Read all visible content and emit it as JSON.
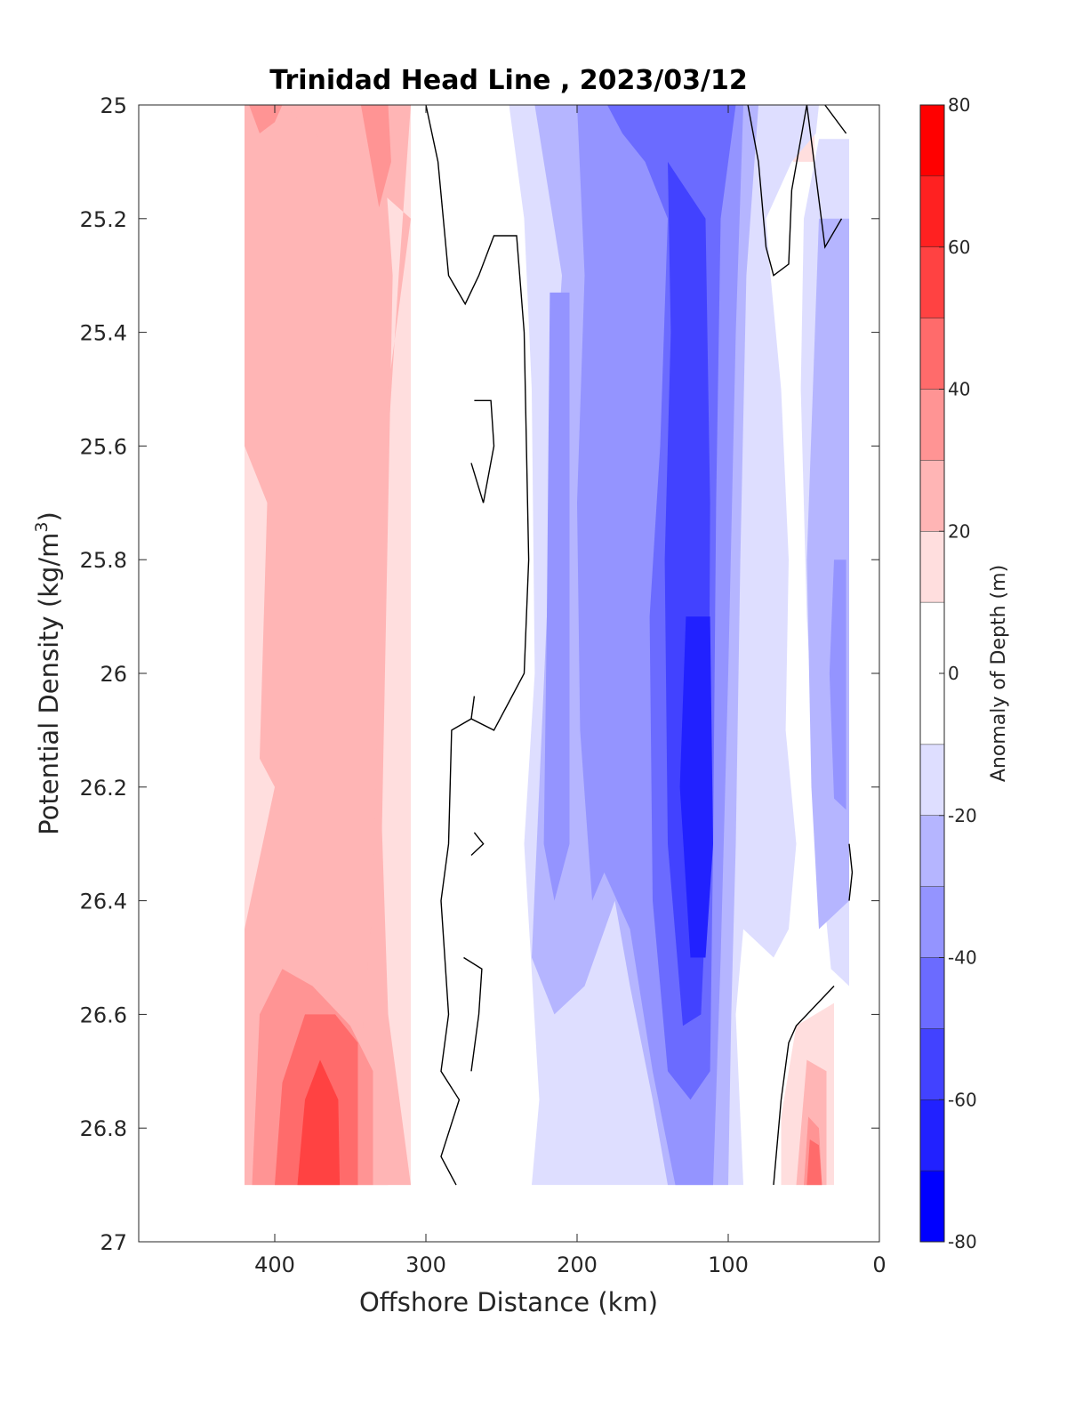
{
  "chart_data": {
    "type": "heatmap",
    "title": "Trinidad Head Line , 2023/03/12",
    "xlabel": "Offshore Distance (km)",
    "ylabel": "Potential Density (kg/m",
    "ylabel_sup": "3",
    "ylabel_close": ")",
    "colorbar_label": "Anomaly of Depth (m)",
    "xlim": [
      490,
      0
    ],
    "x_reversed": true,
    "ylim": [
      25,
      27
    ],
    "y_reversed": true,
    "xticks": [
      400,
      300,
      200,
      100,
      0
    ],
    "yticks": [
      25,
      25.2,
      25.4,
      25.6,
      25.8,
      26,
      26.2,
      26.4,
      26.6,
      26.8,
      27
    ],
    "grid": false,
    "colorbar": {
      "range": [
        -80,
        80
      ],
      "ticks": [
        80,
        60,
        40,
        20,
        0,
        -20,
        -40,
        -60,
        -80
      ],
      "levels": [
        {
          "min": 70,
          "max": 80,
          "color": "#ff0000"
        },
        {
          "min": 60,
          "max": 70,
          "color": "#ff2121"
        },
        {
          "min": 50,
          "max": 60,
          "color": "#ff4242"
        },
        {
          "min": 40,
          "max": 50,
          "color": "#ff6b6b"
        },
        {
          "min": 30,
          "max": 40,
          "color": "#ff9494"
        },
        {
          "min": 20,
          "max": 30,
          "color": "#ffb5b5"
        },
        {
          "min": 10,
          "max": 20,
          "color": "#ffdede"
        },
        {
          "min": -10,
          "max": 10,
          "color": "#ffffff"
        },
        {
          "min": -20,
          "max": -10,
          "color": "#dedeff"
        },
        {
          "min": -30,
          "max": -20,
          "color": "#b5b5ff"
        },
        {
          "min": -40,
          "max": -30,
          "color": "#9494ff"
        },
        {
          "min": -50,
          "max": -40,
          "color": "#6b6bff"
        },
        {
          "min": -60,
          "max": -50,
          "color": "#4242ff"
        },
        {
          "min": -70,
          "max": -60,
          "color": "#2121ff"
        },
        {
          "min": -80,
          "max": -70,
          "color": "#0000ff"
        }
      ]
    },
    "contour_regions": [
      {
        "level": 20,
        "color": "#ffdede",
        "points": [
          [
            420,
            25
          ],
          [
            310,
            25
          ],
          [
            310,
            26.9
          ],
          [
            420,
            26.9
          ]
        ]
      },
      {
        "level": 20,
        "color": "#ffdede",
        "points": [
          [
            57,
            25
          ],
          [
            43,
            25
          ],
          [
            43,
            25.1
          ],
          [
            57,
            25.1
          ]
        ]
      },
      {
        "level": 20,
        "color": "#ffdede",
        "points": [
          [
            65,
            26.9
          ],
          [
            30,
            26.9
          ],
          [
            30,
            26.58
          ],
          [
            55,
            26.62
          ],
          [
            65,
            26.78
          ]
        ]
      },
      {
        "level": 30,
        "color": "#ffb5b5",
        "points": [
          [
            420,
            25
          ],
          [
            330,
            25
          ],
          [
            322,
            25.3
          ],
          [
            330,
            26.4
          ],
          [
            325,
            26.9
          ],
          [
            420,
            26.9
          ],
          [
            420,
            26.45
          ],
          [
            400,
            26.2
          ],
          [
            410,
            26.15
          ],
          [
            405,
            25.7
          ],
          [
            420,
            25.6
          ]
        ]
      },
      {
        "level": 30,
        "color": "#ffb5b5",
        "points": [
          [
            395,
            25
          ],
          [
            310,
            25
          ],
          [
            318,
            25.3
          ],
          [
            330,
            25.8
          ],
          [
            335,
            26.4
          ],
          [
            350,
            26.9
          ],
          [
            310,
            26.9
          ],
          [
            325,
            26.6
          ],
          [
            330,
            26.2
          ],
          [
            325,
            25.5
          ],
          [
            310,
            25.2
          ]
        ]
      },
      {
        "level": 30,
        "color": "#ffb5b5",
        "points": [
          [
            55,
            26.9
          ],
          [
            35,
            26.9
          ],
          [
            35,
            26.7
          ],
          [
            48,
            26.68
          ]
        ]
      },
      {
        "level": 40,
        "color": "#ff9494",
        "points": [
          [
            417,
            25
          ],
          [
            395,
            25
          ],
          [
            400,
            25.03
          ],
          [
            410,
            25.05
          ]
        ]
      },
      {
        "level": 40,
        "color": "#ff9494",
        "points": [
          [
            343,
            25
          ],
          [
            325,
            25
          ],
          [
            323,
            25.1
          ],
          [
            331,
            25.18
          ]
        ]
      },
      {
        "level": 40,
        "color": "#ff9494",
        "points": [
          [
            415,
            26.9
          ],
          [
            335,
            26.9
          ],
          [
            335,
            26.7
          ],
          [
            350,
            26.62
          ],
          [
            375,
            26.55
          ],
          [
            395,
            26.52
          ],
          [
            410,
            26.6
          ]
        ]
      },
      {
        "level": 40,
        "color": "#ff9494",
        "points": [
          [
            50,
            26.9
          ],
          [
            38,
            26.9
          ],
          [
            40,
            26.8
          ],
          [
            47,
            26.78
          ]
        ]
      },
      {
        "level": 50,
        "color": "#ff6b6b",
        "points": [
          [
            400,
            26.9
          ],
          [
            345,
            26.9
          ],
          [
            345,
            26.65
          ],
          [
            360,
            26.6
          ],
          [
            380,
            26.6
          ],
          [
            395,
            26.72
          ]
        ]
      },
      {
        "level": 50,
        "color": "#ff6b6b",
        "points": [
          [
            48,
            26.9
          ],
          [
            38,
            26.9
          ],
          [
            40,
            26.83
          ],
          [
            46,
            26.82
          ]
        ]
      },
      {
        "level": 60,
        "color": "#ff4242",
        "points": [
          [
            385,
            26.9
          ],
          [
            357,
            26.9
          ],
          [
            358,
            26.75
          ],
          [
            370,
            26.68
          ],
          [
            380,
            26.75
          ]
        ]
      },
      {
        "level": -20,
        "color": "#dedeff",
        "points": [
          [
            245,
            25
          ],
          [
            40,
            25
          ],
          [
            42,
            25.05
          ],
          [
            58,
            25.1
          ],
          [
            75,
            25.2
          ],
          [
            72,
            25.3
          ],
          [
            65,
            25.5
          ],
          [
            60,
            25.8
          ],
          [
            62,
            26.1
          ],
          [
            55,
            26.3
          ],
          [
            60,
            26.45
          ],
          [
            70,
            26.5
          ],
          [
            90,
            26.45
          ],
          [
            95,
            26.6
          ],
          [
            90,
            26.9
          ],
          [
            230,
            26.9
          ],
          [
            225,
            26.75
          ],
          [
            235,
            26.3
          ],
          [
            228,
            26
          ],
          [
            230,
            25.5
          ],
          [
            235,
            25.2
          ]
        ]
      },
      {
        "level": -20,
        "color": "#dedeff",
        "points": [
          [
            40,
            25.06
          ],
          [
            20,
            25.06
          ],
          [
            20,
            26.55
          ],
          [
            32,
            26.52
          ],
          [
            40,
            26.3
          ],
          [
            48,
            25.9
          ],
          [
            52,
            25.5
          ],
          [
            50,
            25.2
          ]
        ]
      },
      {
        "level": -30,
        "color": "#b5b5ff",
        "points": [
          [
            228,
            25
          ],
          [
            80,
            25
          ],
          [
            88,
            25.3
          ],
          [
            92,
            25.8
          ],
          [
            95,
            26.3
          ],
          [
            98,
            26.6
          ],
          [
            100,
            26.9
          ],
          [
            140,
            26.9
          ],
          [
            150,
            26.75
          ],
          [
            165,
            26.55
          ],
          [
            175,
            26.4
          ],
          [
            195,
            26.55
          ],
          [
            215,
            26.6
          ],
          [
            230,
            26.5
          ],
          [
            225,
            26.2
          ],
          [
            220,
            25.9
          ],
          [
            215,
            25.5
          ],
          [
            210,
            25.3
          ]
        ]
      },
      {
        "level": -30,
        "color": "#b5b5ff",
        "points": [
          [
            40,
            25.2
          ],
          [
            20,
            25.2
          ],
          [
            20,
            26.4
          ],
          [
            40,
            26.45
          ],
          [
            45,
            26.2
          ],
          [
            48,
            25.8
          ]
        ]
      },
      {
        "level": -40,
        "color": "#9494ff",
        "points": [
          [
            200,
            25
          ],
          [
            90,
            25
          ],
          [
            95,
            25.4
          ],
          [
            100,
            26
          ],
          [
            105,
            26.5
          ],
          [
            110,
            26.9
          ],
          [
            135,
            26.9
          ],
          [
            150,
            26.7
          ],
          [
            165,
            26.45
          ],
          [
            182,
            26.35
          ],
          [
            190,
            26.4
          ],
          [
            198,
            26.1
          ],
          [
            200,
            25.7
          ],
          [
            195,
            25.3
          ]
        ]
      },
      {
        "level": -40,
        "color": "#9494ff",
        "points": [
          [
            218,
            25.33
          ],
          [
            205,
            25.33
          ],
          [
            205,
            26.3
          ],
          [
            215,
            26.4
          ],
          [
            222,
            26.3
          ],
          [
            220,
            25.9
          ]
        ]
      },
      {
        "level": -40,
        "color": "#9494ff",
        "points": [
          [
            30,
            25.8
          ],
          [
            22,
            25.8
          ],
          [
            22,
            26.24
          ],
          [
            30,
            26.22
          ],
          [
            33,
            26
          ]
        ]
      },
      {
        "level": -50,
        "color": "#6b6bff",
        "points": [
          [
            180,
            25
          ],
          [
            95,
            25
          ],
          [
            105,
            25.2
          ],
          [
            108,
            25.7
          ],
          [
            110,
            26.3
          ],
          [
            112,
            26.7
          ],
          [
            125,
            26.75
          ],
          [
            140,
            26.7
          ],
          [
            150,
            26.4
          ],
          [
            152,
            25.9
          ],
          [
            145,
            25.6
          ],
          [
            140,
            25.2
          ],
          [
            155,
            25.1
          ],
          [
            170,
            25.05
          ]
        ]
      },
      {
        "level": -60,
        "color": "#4242ff",
        "points": [
          [
            140,
            25.1
          ],
          [
            115,
            25.2
          ],
          [
            112,
            25.7
          ],
          [
            113,
            26.3
          ],
          [
            118,
            26.6
          ],
          [
            130,
            26.62
          ],
          [
            140,
            26.3
          ],
          [
            142,
            25.8
          ],
          [
            138,
            25.4
          ]
        ]
      },
      {
        "level": -70,
        "color": "#2121ff",
        "points": [
          [
            128,
            25.9
          ],
          [
            112,
            25.9
          ],
          [
            110,
            26.3
          ],
          [
            115,
            26.5
          ],
          [
            125,
            26.5
          ],
          [
            132,
            26.2
          ]
        ]
      }
    ],
    "contour_lines": [
      [
        [
          300,
          25
        ],
        [
          292,
          25.1
        ],
        [
          285,
          25.3
        ],
        [
          274,
          25.35
        ],
        [
          265,
          25.3
        ],
        [
          255,
          25.23
        ],
        [
          240,
          25.23
        ],
        [
          235,
          25.4
        ],
        [
          232,
          25.8
        ],
        [
          235,
          26
        ],
        [
          245,
          26.05
        ],
        [
          255,
          26.1
        ],
        [
          270,
          26.08
        ],
        [
          283,
          26.1
        ],
        [
          285,
          26.3
        ],
        [
          290,
          26.4
        ],
        [
          285,
          26.6
        ],
        [
          290,
          26.7
        ],
        [
          278,
          26.75
        ],
        [
          290,
          26.85
        ],
        [
          280,
          26.9
        ]
      ],
      [
        [
          268,
          25.52
        ],
        [
          257,
          25.52
        ],
        [
          255,
          25.6
        ],
        [
          262,
          25.7
        ],
        [
          270,
          25.63
        ]
      ],
      [
        [
          270,
          26.08
        ],
        [
          268,
          26.04
        ]
      ],
      [
        [
          268,
          26.28
        ],
        [
          262,
          26.3
        ],
        [
          270,
          26.32
        ]
      ],
      [
        [
          275,
          26.5
        ],
        [
          263,
          26.52
        ],
        [
          265,
          26.6
        ],
        [
          270,
          26.7
        ]
      ],
      [
        [
          87,
          25
        ],
        [
          80,
          25.1
        ],
        [
          75,
          25.25
        ],
        [
          70,
          25.3
        ],
        [
          60,
          25.28
        ],
        [
          58,
          25.15
        ],
        [
          48,
          25
        ],
        [
          36,
          25.25
        ],
        [
          25,
          25.2
        ]
      ],
      [
        [
          36,
          25
        ],
        [
          22,
          25.05
        ]
      ],
      [
        [
          20,
          26.3
        ],
        [
          18,
          26.35
        ],
        [
          20,
          26.4
        ]
      ],
      [
        [
          70,
          26.9
        ],
        [
          65,
          26.75
        ],
        [
          60,
          26.65
        ],
        [
          55,
          26.62
        ],
        [
          30,
          26.55
        ]
      ]
    ]
  }
}
